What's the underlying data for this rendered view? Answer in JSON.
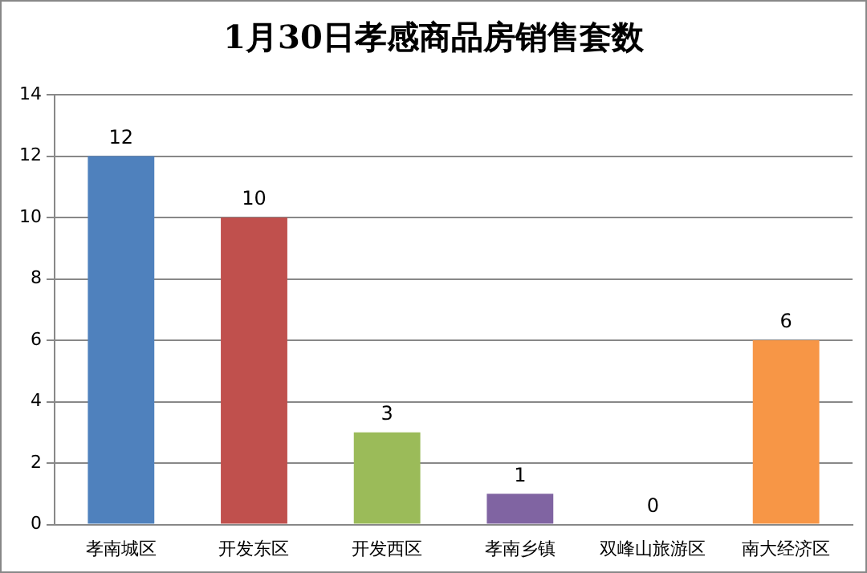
{
  "chart_data": {
    "type": "bar",
    "title": "1月30日孝感商品房销售套数",
    "categories": [
      "孝南城区",
      "开发东区",
      "开发西区",
      "孝南乡镇",
      "双峰山旅游区",
      "南大经济区"
    ],
    "values": [
      12,
      10,
      3,
      1,
      0,
      6
    ],
    "colors": [
      "#4f81bd",
      "#c0504d",
      "#9bbb59",
      "#8064a2",
      "#4bacc6",
      "#f79646"
    ],
    "ylim": [
      0,
      14
    ],
    "yticks": [
      0,
      2,
      4,
      6,
      8,
      10,
      12,
      14
    ],
    "grid": "y",
    "data_labels": true,
    "legend": false
  }
}
